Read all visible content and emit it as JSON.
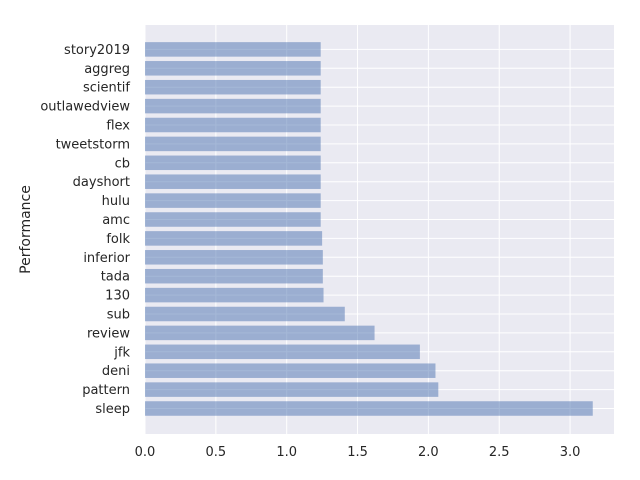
{
  "chart_data": {
    "type": "bar",
    "orientation": "horizontal",
    "categories": [
      "sleep",
      "pattern",
      "deni",
      "jfk",
      "review",
      "sub",
      "130",
      "tada",
      "inferior",
      "folk",
      "amc",
      "hulu",
      "dayshort",
      "cb",
      "tweetstorm",
      "flex",
      "outlawedview",
      "scientif",
      "aggreg",
      "story2019"
    ],
    "values": [
      3.16,
      2.07,
      2.05,
      1.94,
      1.62,
      1.41,
      1.26,
      1.255,
      1.255,
      1.25,
      1.24,
      1.24,
      1.24,
      1.24,
      1.24,
      1.24,
      1.24,
      1.24,
      1.24,
      1.24
    ],
    "xlabel": "",
    "ylabel": "Performance",
    "xlim": [
      0,
      3.31
    ],
    "xticks": [
      "0.0",
      "0.5",
      "1.0",
      "1.5",
      "2.0",
      "2.5",
      "3.0"
    ],
    "grid": true,
    "colors": {
      "bar": "#4c72b0",
      "background": "#eaeaf2",
      "grid": "#ffffff"
    }
  }
}
